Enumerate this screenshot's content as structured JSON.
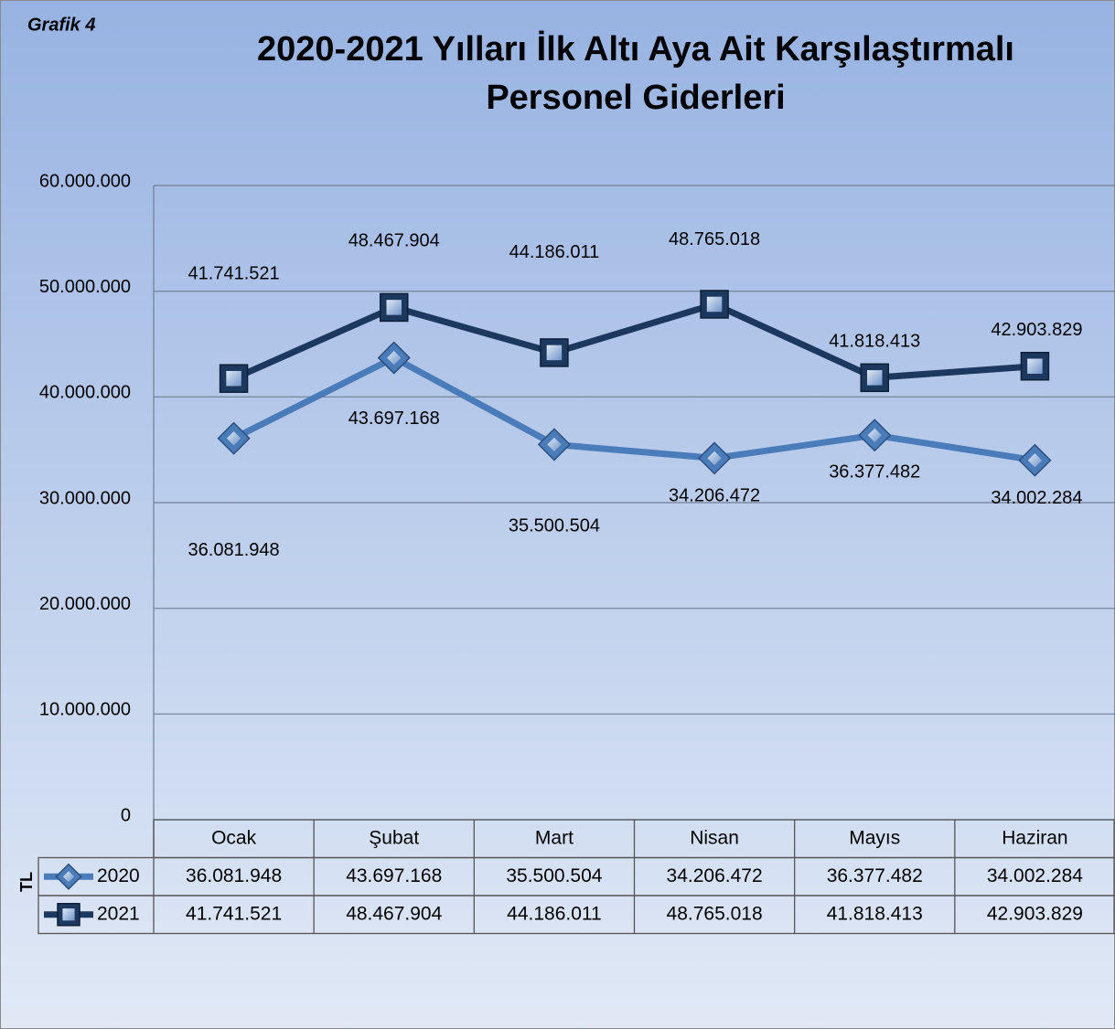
{
  "chart_data": {
    "type": "line",
    "subtitle": "Grafik 4",
    "title": [
      "2020-2021 Yılları İlk Altı Aya Ait Karşılaştırmalı",
      "Personel Giderleri"
    ],
    "y_label": "TL",
    "categories": [
      "Ocak",
      "Şubat",
      "Mart",
      "Nisan",
      "Mayıs",
      "Haziran"
    ],
    "series": [
      {
        "name": "2020",
        "color": "#4a7cba",
        "marker": "diamond",
        "values": [
          36081948,
          43697168,
          35500504,
          34206472,
          36377482,
          34002284
        ],
        "value_labels": [
          "36.081.948",
          "43.697.168",
          "35.500.504",
          "34.206.472",
          "36.377.482",
          "34.002.284"
        ]
      },
      {
        "name": "2021",
        "color": "#1c385f",
        "marker": "square",
        "values": [
          41741521,
          48467904,
          44186011,
          48765018,
          41818413,
          42903829
        ],
        "value_labels": [
          "41.741.521",
          "48.467.904",
          "44.186.011",
          "48.765.018",
          "41.818.413",
          "42.903.829"
        ]
      }
    ],
    "ylim": [
      0,
      60000000
    ],
    "yticks": [
      0,
      {
        "value": 10000000,
        "label": "10.000.000"
      },
      {
        "value": 20000000,
        "label": "20.000.000"
      },
      {
        "value": 30000000,
        "label": "30.000.000"
      },
      {
        "value": 40000000,
        "label": "40.000.000"
      },
      {
        "value": 50000000,
        "label": "50.000.000"
      },
      {
        "value": 60000000,
        "label": "60.000.000"
      }
    ],
    "grid": true,
    "data_table": true
  }
}
